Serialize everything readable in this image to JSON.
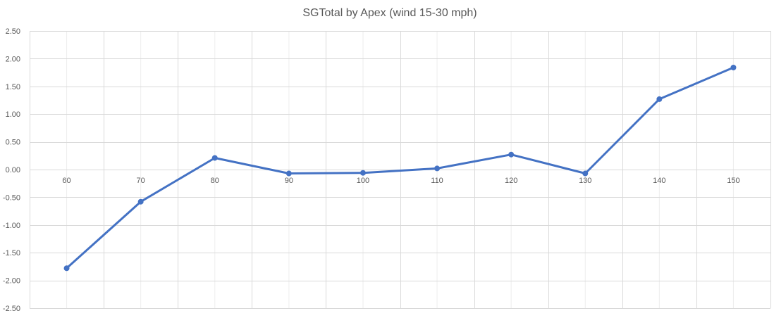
{
  "chart_data": {
    "type": "line",
    "title": "SGTotal by Apex (wind 15-30 mph)",
    "xlabel": "",
    "ylabel": "",
    "categories": [
      "60",
      "70",
      "80",
      "90",
      "100",
      "110",
      "120",
      "130",
      "140",
      "150"
    ],
    "series": [
      {
        "values": [
          -1.78,
          -0.58,
          0.21,
          -0.07,
          -0.06,
          0.02,
          0.27,
          -0.07,
          1.27,
          1.84
        ]
      }
    ],
    "ylim": [
      -2.5,
      2.5
    ],
    "yticks": [
      "2.50",
      "2.00",
      "1.50",
      "1.00",
      "0.50",
      "0.00",
      "-0.50",
      "-1.00",
      "-1.50",
      "-2.00",
      "-2.50"
    ],
    "grid": true,
    "legend": "none",
    "line_color": "#4472C4",
    "grid_color": "#D9D9D9",
    "minor_grid_color": "#EDEDED",
    "text_color": "#595959"
  }
}
